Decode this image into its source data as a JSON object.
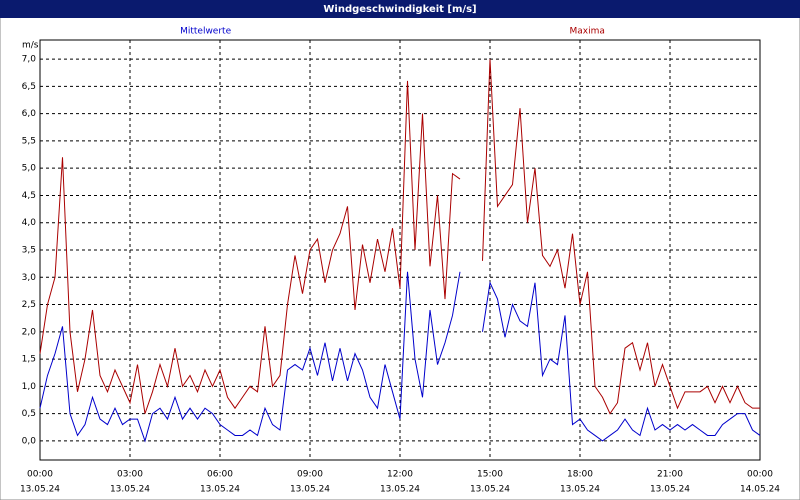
{
  "chart_data": {
    "type": "line",
    "title": "Windgeschwindigkeit [m/s]",
    "y_label": "m/s",
    "x": [
      0,
      0.25,
      0.5,
      0.75,
      1,
      1.25,
      1.5,
      1.75,
      2,
      2.25,
      2.5,
      2.75,
      3,
      3.25,
      3.5,
      3.75,
      4,
      4.25,
      4.5,
      4.75,
      5,
      5.25,
      5.5,
      5.75,
      6,
      6.25,
      6.5,
      6.75,
      7,
      7.25,
      7.5,
      7.75,
      8,
      8.25,
      8.5,
      8.75,
      9,
      9.25,
      9.5,
      9.75,
      10,
      10.25,
      10.5,
      10.75,
      11,
      11.25,
      11.5,
      11.75,
      12,
      12.25,
      12.5,
      12.75,
      13,
      13.25,
      13.5,
      13.75,
      14,
      14.25,
      14.5,
      14.75,
      15,
      15.25,
      15.5,
      15.75,
      16,
      16.25,
      16.5,
      16.75,
      17,
      17.25,
      17.5,
      17.75,
      18,
      18.25,
      18.5,
      18.75,
      19,
      19.25,
      19.5,
      19.75,
      20,
      20.25,
      20.5,
      20.75,
      21,
      21.25,
      21.5,
      21.75,
      22,
      22.25,
      22.5,
      22.75,
      23,
      23.25,
      23.5,
      23.75,
      24
    ],
    "series": [
      {
        "name": "Mittelwerte",
        "color": "#0000cc",
        "values": [
          0.6,
          1.2,
          1.6,
          2.1,
          0.5,
          0.1,
          0.3,
          0.8,
          0.4,
          0.3,
          0.6,
          0.3,
          0.4,
          0.4,
          0.0,
          0.5,
          0.6,
          0.4,
          0.8,
          0.4,
          0.6,
          0.4,
          0.6,
          0.5,
          0.3,
          0.2,
          0.1,
          0.1,
          0.2,
          0.1,
          0.6,
          0.3,
          0.2,
          1.3,
          1.4,
          1.3,
          1.7,
          1.2,
          1.8,
          1.1,
          1.7,
          1.1,
          1.6,
          1.3,
          0.8,
          0.6,
          1.4,
          0.9,
          0.4,
          3.1,
          1.5,
          0.8,
          2.4,
          1.4,
          1.8,
          2.3,
          3.1,
          null,
          null,
          2.0,
          2.9,
          2.6,
          1.9,
          2.5,
          2.2,
          2.1,
          2.9,
          1.2,
          1.5,
          1.4,
          2.3,
          0.3,
          0.4,
          0.2,
          0.1,
          0.0,
          0.1,
          0.2,
          0.4,
          0.2,
          0.1,
          0.6,
          0.2,
          0.3,
          0.2,
          0.3,
          0.2,
          0.3,
          0.2,
          0.1,
          0.1,
          0.3,
          0.4,
          0.5,
          0.5,
          0.2,
          0.1
        ]
      },
      {
        "name": "Maxima",
        "color": "#aa0000",
        "values": [
          1.6,
          2.5,
          3.0,
          5.2,
          2.0,
          0.9,
          1.5,
          2.4,
          1.2,
          0.9,
          1.3,
          1.0,
          0.7,
          1.4,
          0.5,
          0.9,
          1.4,
          1.0,
          1.7,
          1.0,
          1.2,
          0.9,
          1.3,
          1.0,
          1.3,
          0.8,
          0.6,
          0.8,
          1.0,
          0.9,
          2.1,
          1.0,
          1.2,
          2.5,
          3.4,
          2.7,
          3.5,
          3.7,
          2.9,
          3.5,
          3.8,
          4.3,
          2.4,
          3.6,
          2.9,
          3.7,
          3.1,
          3.9,
          2.8,
          6.6,
          3.5,
          6.0,
          3.2,
          4.5,
          2.6,
          4.9,
          4.8,
          null,
          null,
          3.3,
          7.0,
          4.3,
          4.5,
          4.7,
          6.1,
          4.0,
          5.0,
          3.4,
          3.2,
          3.5,
          2.8,
          3.8,
          2.5,
          3.1,
          1.0,
          0.8,
          0.5,
          0.7,
          1.7,
          1.8,
          1.3,
          1.8,
          1.0,
          1.4,
          1.0,
          0.6,
          0.9,
          0.9,
          0.9,
          1.0,
          0.7,
          1.0,
          0.7,
          1.0,
          0.7,
          0.6,
          0.6
        ]
      }
    ],
    "xlim": [
      0,
      24
    ],
    "xticks": [
      {
        "value": 0,
        "label": "00:00"
      },
      {
        "value": 3,
        "label": "03:00"
      },
      {
        "value": 6,
        "label": "06:00"
      },
      {
        "value": 9,
        "label": "09:00"
      },
      {
        "value": 12,
        "label": "12:00"
      },
      {
        "value": 15,
        "label": "15:00"
      },
      {
        "value": 18,
        "label": "18:00"
      },
      {
        "value": 21,
        "label": "21:00"
      },
      {
        "value": 24,
        "label": "00:00"
      }
    ],
    "xtick_dates": [
      "13.05.24",
      "13.05.24",
      "13.05.24",
      "13.05.24",
      "13.05.24",
      "13.05.24",
      "13.05.24",
      "13.05.24",
      "14.05.24"
    ],
    "ylim": [
      -0.35,
      7.35
    ],
    "yticks": [
      {
        "value": 0,
        "label": "0,0"
      },
      {
        "value": 0.5,
        "label": "0,5"
      },
      {
        "value": 1,
        "label": "1,0"
      },
      {
        "value": 1.5,
        "label": "1,5"
      },
      {
        "value": 2,
        "label": "2,0"
      },
      {
        "value": 2.5,
        "label": "2,5"
      },
      {
        "value": 3,
        "label": "3,0"
      },
      {
        "value": 3.5,
        "label": "3,5"
      },
      {
        "value": 4,
        "label": "4,0"
      },
      {
        "value": 4.5,
        "label": "4,5"
      },
      {
        "value": 5,
        "label": "5,0"
      },
      {
        "value": 5.5,
        "label": "5,5"
      },
      {
        "value": 6,
        "label": "6,0"
      },
      {
        "value": 6.5,
        "label": "6,5"
      },
      {
        "value": 7,
        "label": "7,0"
      }
    ],
    "grid": true
  }
}
